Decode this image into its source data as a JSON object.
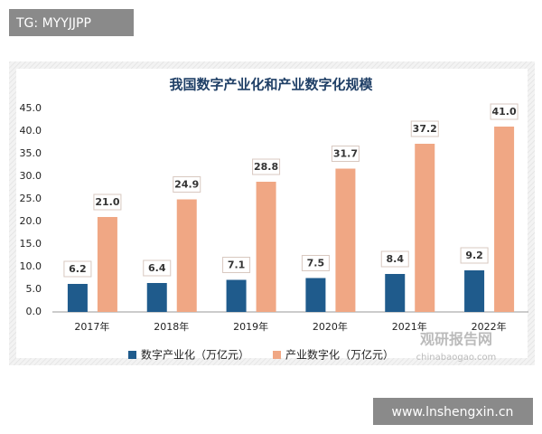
{
  "header": {
    "tag": "TG: MYYJJPP"
  },
  "chart_data": {
    "type": "bar",
    "title": "我国数字产业化和产业数字化规模",
    "categories": [
      "2017年",
      "2018年",
      "2019年",
      "2020年",
      "2021年",
      "2022年"
    ],
    "series": [
      {
        "name": "数字产业化（万亿元）",
        "color": "#1f5b8c",
        "values": [
          6.2,
          6.4,
          7.1,
          7.5,
          8.4,
          9.2
        ],
        "value_labels": [
          "6.2",
          "6.4",
          "7.1",
          "7.5",
          "8.4",
          "9.2"
        ]
      },
      {
        "name": "产业数字化（万亿元）",
        "color": "#f0a784",
        "values": [
          21.0,
          24.9,
          28.8,
          31.7,
          37.2,
          41.0
        ],
        "value_labels": [
          "21.0",
          "24.9",
          "28.8",
          "31.7",
          "37.2",
          "41.0"
        ]
      }
    ],
    "ylim": [
      0,
      45
    ],
    "yticks": [
      {
        "value": 0,
        "label": "0.0"
      },
      {
        "value": 5,
        "label": "5.0"
      },
      {
        "value": 10,
        "label": "10.0"
      },
      {
        "value": 15,
        "label": "15.0"
      },
      {
        "value": 20,
        "label": "20.0"
      },
      {
        "value": 25,
        "label": "25.0"
      },
      {
        "value": 30,
        "label": "30.0"
      },
      {
        "value": 35,
        "label": "35.0"
      },
      {
        "value": 40,
        "label": "40.0"
      },
      {
        "value": 45,
        "label": "45.0"
      }
    ],
    "grid": false
  },
  "watermark": {
    "name": "观研报告网",
    "url": "chinabaogao.com"
  },
  "footer": {
    "site": "www.lnshengxin.cn"
  }
}
